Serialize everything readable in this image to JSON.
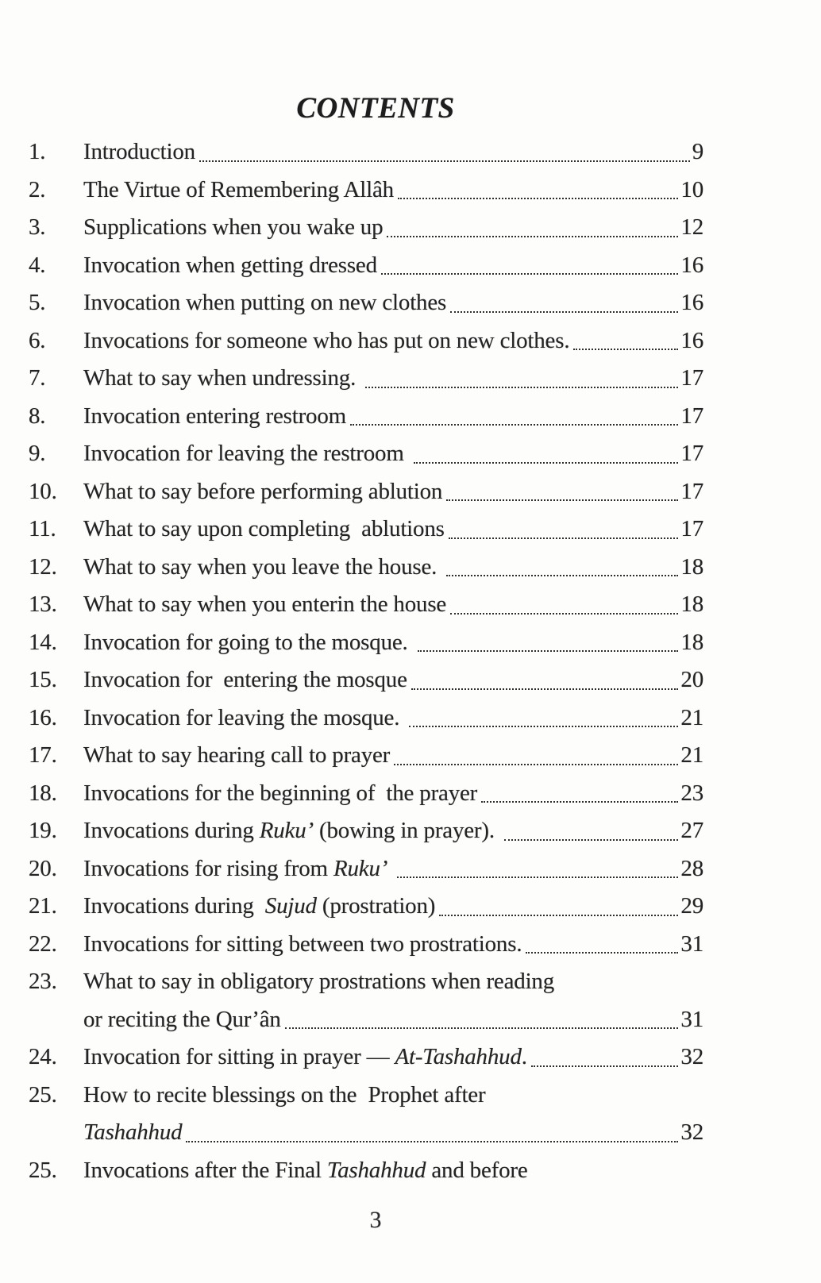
{
  "page": {
    "title": "CONTENTS",
    "footer_page_number": "3",
    "colors": {
      "paper": "#fdfdfc",
      "ink": "#242424"
    }
  },
  "toc": {
    "entries": [
      {
        "num": "1.",
        "segments": [
          {
            "text": "Introduction",
            "italic": false
          }
        ],
        "page": "9",
        "leader": true
      },
      {
        "num": "2.",
        "segments": [
          {
            "text": "The Virtue of Remembering Allâh",
            "italic": false
          }
        ],
        "page": "10",
        "leader": true
      },
      {
        "num": "3.",
        "segments": [
          {
            "text": "Supplications when you wake up",
            "italic": false
          }
        ],
        "page": "12",
        "leader": true
      },
      {
        "num": "4.",
        "segments": [
          {
            "text": "Invocation when getting dressed",
            "italic": false
          }
        ],
        "page": "16",
        "leader": true
      },
      {
        "num": "5.",
        "segments": [
          {
            "text": "Invocation when putting on new clothes",
            "italic": false
          }
        ],
        "page": "16",
        "leader": true
      },
      {
        "num": "6.",
        "segments": [
          {
            "text": "Invocations for someone who has put on new clothes.",
            "italic": false
          }
        ],
        "page": "16",
        "leader": true
      },
      {
        "num": "7.",
        "segments": [
          {
            "text": "What to say when undressing. ",
            "italic": false
          }
        ],
        "page": "17",
        "leader": true
      },
      {
        "num": "8.",
        "segments": [
          {
            "text": "Invocation entering restroom",
            "italic": false
          }
        ],
        "page": "17",
        "leader": true
      },
      {
        "num": "9.",
        "segments": [
          {
            "text": "Invocation for leaving the restroom ",
            "italic": false
          }
        ],
        "page": "17",
        "leader": true
      },
      {
        "num": "10.",
        "segments": [
          {
            "text": "What to say before performing ablution",
            "italic": false
          }
        ],
        "page": "17",
        "leader": true
      },
      {
        "num": "11.",
        "segments": [
          {
            "text": "What to say upon completing  ablutions",
            "italic": false
          }
        ],
        "page": "17",
        "leader": true
      },
      {
        "num": "12.",
        "segments": [
          {
            "text": "What to say when you leave the house. ",
            "italic": false
          }
        ],
        "page": "18",
        "leader": true
      },
      {
        "num": "13.",
        "segments": [
          {
            "text": "What to say when you enterin the house",
            "italic": false
          }
        ],
        "page": "18",
        "leader": true
      },
      {
        "num": "14.",
        "segments": [
          {
            "text": "Invocation for going to the mosque. ",
            "italic": false
          }
        ],
        "page": "18",
        "leader": true
      },
      {
        "num": "15.",
        "segments": [
          {
            "text": "Invocation for  entering the mosque",
            "italic": false
          }
        ],
        "page": "20",
        "leader": true
      },
      {
        "num": "16.",
        "segments": [
          {
            "text": "Invocation for leaving the mosque. ",
            "italic": false
          }
        ],
        "page": "21",
        "leader": true
      },
      {
        "num": "17.",
        "segments": [
          {
            "text": "What to say hearing call to prayer",
            "italic": false
          }
        ],
        "page": "21",
        "leader": true
      },
      {
        "num": "18.",
        "segments": [
          {
            "text": "Invocations for the beginning of  the prayer",
            "italic": false
          }
        ],
        "page": "23",
        "leader": true
      },
      {
        "num": "19.",
        "segments": [
          {
            "text": "Invocations during ",
            "italic": false
          },
          {
            "text": "Ruku’",
            "italic": true
          },
          {
            "text": " (bowing in prayer). ",
            "italic": false
          }
        ],
        "page": "27",
        "leader": true
      },
      {
        "num": "20.",
        "segments": [
          {
            "text": "Invocations for rising from ",
            "italic": false
          },
          {
            "text": "Ruku’",
            "italic": true
          },
          {
            "text": " ",
            "italic": false
          }
        ],
        "page": "28",
        "leader": true
      },
      {
        "num": "21.",
        "segments": [
          {
            "text": "Invocations during  ",
            "italic": false
          },
          {
            "text": "Sujud",
            "italic": true
          },
          {
            "text": " (prostration)",
            "italic": false
          }
        ],
        "page": "29",
        "leader": true
      },
      {
        "num": "22.",
        "segments": [
          {
            "text": "Invocations for sitting between two prostrations.",
            "italic": false
          }
        ],
        "page": "31",
        "leader": true
      },
      {
        "num": "23.",
        "segments": [
          {
            "text": "What to say in obligatory prostrations when reading",
            "italic": false
          }
        ],
        "page": "",
        "leader": false
      },
      {
        "num": "",
        "segments": [
          {
            "text": "or reciting the Qur’ân",
            "italic": false
          }
        ],
        "page": "31",
        "leader": true
      },
      {
        "num": "24.",
        "segments": [
          {
            "text": "Invocation for sitting in prayer — ",
            "italic": false
          },
          {
            "text": "At-Tashahhud",
            "italic": true
          },
          {
            "text": ".",
            "italic": false
          }
        ],
        "page": "32",
        "leader": true
      },
      {
        "num": "25.",
        "segments": [
          {
            "text": "How to recite blessings on the  Prophet after",
            "italic": false
          }
        ],
        "page": "",
        "leader": false
      },
      {
        "num": "",
        "segments": [
          {
            "text": "Tashahhud",
            "italic": true
          }
        ],
        "page": "32",
        "leader": true
      },
      {
        "num": "25.",
        "segments": [
          {
            "text": "Invocations after the Final ",
            "italic": false
          },
          {
            "text": "Tashahhud",
            "italic": true
          },
          {
            "text": " and before",
            "italic": false
          }
        ],
        "page": "",
        "leader": false
      }
    ]
  }
}
